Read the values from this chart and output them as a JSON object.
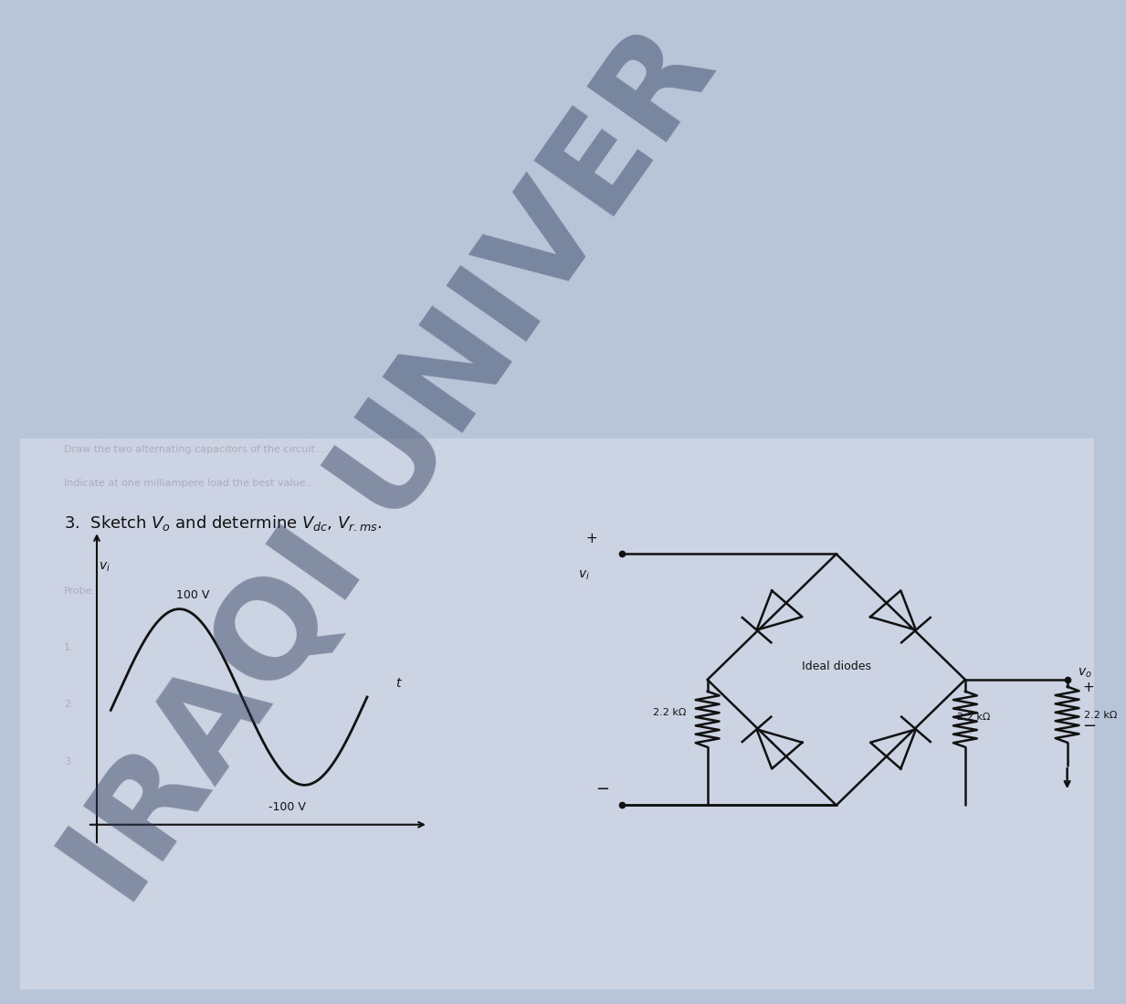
{
  "bg_color": "#b8c4d8",
  "paper_color": "#d8dde8",
  "title_text": "3.  Sketch $V_o$ and determine $V_{dc}$, $V_{r.ms}$.",
  "title_fontsize": 13,
  "sine_amplitude": 100,
  "sine_label_pos_text": "100 V",
  "sine_label_neg_text": "-100 V",
  "vi_label": "$v_i$",
  "t_label": "t",
  "watermark_line1": "IRAQI UNIVER",
  "watermark_color": "#2a3a5a",
  "watermark_alpha": 0.45,
  "watermark_fontsize": 105,
  "circuit_label_diodes": "Ideal diodes",
  "circuit_r1": "2.2 kΩ",
  "circuit_r2": "2.2 kΩ",
  "circuit_r3": "2.2 kΩ",
  "circuit_vi_label": "$v_i$",
  "circuit_vo_label": "$v_o$",
  "line_color": "#111111",
  "text_color": "#111111",
  "faded_text_color": "#888899"
}
